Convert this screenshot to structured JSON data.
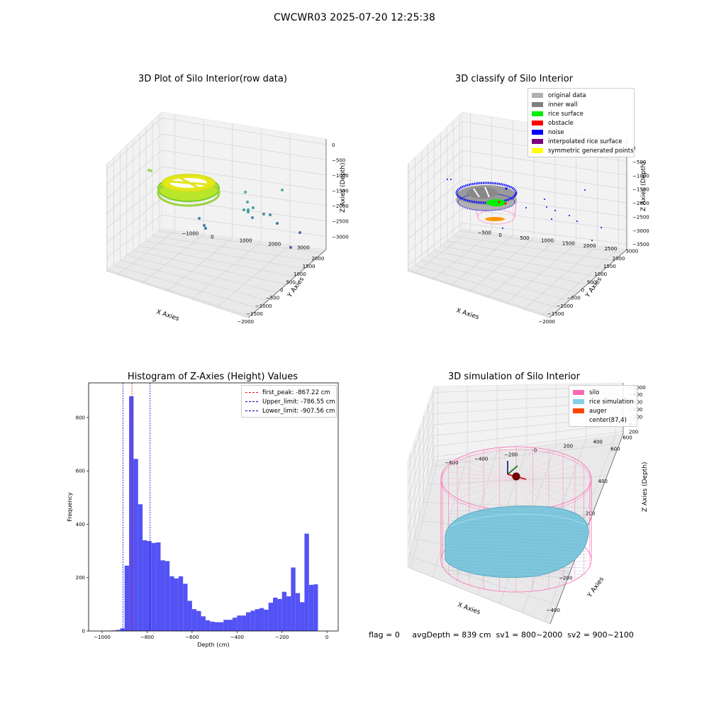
{
  "suptitle": "CWCWR03 2025-07-20 12:25:38",
  "footer": "flag = 0     avgDepth = 839 cm  sv1 = 800~2000  sv2 = 900~2100",
  "chart_data": [
    {
      "type": "scatter",
      "title": "3D Plot of Silo Interior(row data)",
      "xlabel": "X Axies",
      "ylabel": "Y Axies",
      "zlabel": "Z Axies (Depth)",
      "x_ticks": [
        "−2000",
        "−1500",
        "−1000",
        "−500",
        "0",
        "500",
        "1000",
        "1500",
        "2000"
      ],
      "y_ticks": [
        "−1000",
        "0",
        "1000",
        "2000",
        "3000"
      ],
      "z_ticks": [
        "0",
        "−500",
        "−1000",
        "−1500",
        "−2000",
        "−2500",
        "−3000"
      ],
      "xlim": [
        -2000,
        2000
      ],
      "ylim": [
        -1000,
        3500
      ],
      "zlim": [
        -3300,
        0
      ],
      "grid": true
    },
    {
      "type": "scatter",
      "title": "3D classify of Silo Interior",
      "xlabel": "X Axies",
      "ylabel": "Y Axies",
      "zlabel": "Z Axies (Depth)",
      "x_ticks": [
        "−2000",
        "−1500",
        "−1000",
        "−500",
        "0",
        "500",
        "1000",
        "1500",
        "2000"
      ],
      "y_ticks": [
        "−500",
        "0",
        "500",
        "1000",
        "1500",
        "2000",
        "2500",
        "3000"
      ],
      "z_ticks": [
        "0",
        "−500",
        "−1000",
        "−1500",
        "−2000",
        "−2500",
        "−3000",
        "−3500"
      ],
      "xlim": [
        -2000,
        2000
      ],
      "ylim": [
        -500,
        3000
      ],
      "zlim": [
        -3500,
        0
      ],
      "grid": true,
      "legend_position": "top-right",
      "legend": [
        {
          "label": "original data",
          "color": "#b0b0b0"
        },
        {
          "label": "inner wall",
          "color": "#808080"
        },
        {
          "label": "rice surface",
          "color": "#00ee00"
        },
        {
          "label": "obstacle",
          "color": "#ff0000"
        },
        {
          "label": "noise",
          "color": "#0000ff"
        },
        {
          "label": "interpolated rice surface",
          "color": "#800080"
        },
        {
          "label": "symmetric generated points",
          "color": "#ffff00"
        }
      ]
    },
    {
      "type": "bar",
      "title": "Histogram of Z-Axies (Height) Values",
      "xlabel": "Depth (cm)",
      "ylabel": "Frequency",
      "xlim": [
        -1060,
        50
      ],
      "ylim": [
        0,
        930
      ],
      "x_ticks": [
        -1000,
        -800,
        -600,
        -400,
        -200,
        0
      ],
      "x_tick_labels": [
        "−1000",
        "−800",
        "−600",
        "−400",
        "−200",
        "0"
      ],
      "y_ticks": [
        0,
        200,
        400,
        600,
        800
      ],
      "bin_width": 20,
      "bin_starts": [
        -1000,
        -980,
        -960,
        -940,
        -920,
        -900,
        -880,
        -860,
        -840,
        -820,
        -800,
        -780,
        -760,
        -740,
        -720,
        -700,
        -680,
        -660,
        -640,
        -620,
        -600,
        -580,
        -560,
        -540,
        -520,
        -500,
        -480,
        -460,
        -440,
        -420,
        -400,
        -380,
        -360,
        -340,
        -320,
        -300,
        -280,
        -260,
        -240,
        -220,
        -200,
        -180,
        -160,
        -140,
        -120,
        -100,
        -80,
        -60,
        -40,
        -20
      ],
      "values": [
        1,
        1,
        2,
        4,
        10,
        245,
        880,
        645,
        475,
        340,
        337,
        330,
        332,
        265,
        262,
        205,
        197,
        205,
        177,
        113,
        82,
        75,
        55,
        40,
        35,
        33,
        33,
        42,
        42,
        50,
        58,
        58,
        70,
        76,
        82,
        86,
        80,
        106,
        125,
        120,
        147,
        130,
        238,
        142,
        108,
        365,
        173,
        175,
        0,
        0
      ],
      "bar_color": "#5252f5",
      "legend_position": "top-right",
      "lines": [
        {
          "label": "first_peak: -867.22 cm",
          "x": -867.22,
          "color": "#ff0000"
        },
        {
          "label": "Upper_limit: -786.55 cm",
          "x": -786.55,
          "color": "#0000cc"
        },
        {
          "label": "Lower_limit: -907.56 cm",
          "x": -907.56,
          "color": "#0000cc"
        }
      ]
    },
    {
      "type": "surface",
      "title": "3D simulation of Silo Interior",
      "xlabel": "X Axies",
      "ylabel": "Y Axies",
      "zlabel": "Z Axies (Depth)",
      "x_ticks": [
        "−400",
        "−200",
        "0",
        "200",
        "400",
        "600"
      ],
      "y_ticks": [
        "−600",
        "−400",
        "−200",
        "0",
        "200",
        "400",
        "600"
      ],
      "z_ticks": [
        "200",
        "0",
        "−200",
        "−400",
        "−600",
        "−800",
        "−1000"
      ],
      "xlim": [
        -500,
        700
      ],
      "ylim": [
        -650,
        650
      ],
      "zlim": [
        -1000,
        250
      ],
      "grid": true,
      "legend_position": "top-right",
      "legend": [
        {
          "label": "silo",
          "color": "#ff69b4"
        },
        {
          "label": "rice simulation",
          "color": "#87ceeb"
        },
        {
          "label": "auger",
          "color": "#ff4500"
        },
        {
          "label": "center(87,4)",
          "color": "#ffffff"
        }
      ]
    }
  ]
}
